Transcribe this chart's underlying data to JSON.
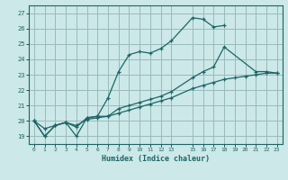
{
  "xlabel": "Humidex (Indice chaleur)",
  "background_color": "#cce8e8",
  "grid_color": "#99bbbb",
  "line_color": "#1a6666",
  "xlim": [
    -0.5,
    23.5
  ],
  "ylim": [
    18.5,
    27.5
  ],
  "xticks": [
    0,
    1,
    2,
    3,
    4,
    5,
    6,
    7,
    8,
    9,
    10,
    11,
    12,
    13,
    15,
    16,
    17,
    18,
    19,
    20,
    21,
    22,
    23
  ],
  "yticks": [
    19,
    20,
    21,
    22,
    23,
    24,
    25,
    26,
    27
  ],
  "line1_x": [
    0,
    1,
    2,
    3,
    4,
    5,
    6,
    7,
    8,
    9,
    10,
    11,
    12,
    13,
    15,
    16,
    17,
    18
  ],
  "line1_y": [
    20.0,
    19.0,
    19.7,
    19.9,
    19.0,
    20.2,
    20.3,
    21.5,
    23.2,
    24.3,
    24.5,
    24.4,
    24.7,
    25.2,
    26.7,
    26.6,
    26.1,
    26.2
  ],
  "line2_x": [
    0,
    1,
    2,
    3,
    4,
    5,
    6,
    7,
    8,
    9,
    10,
    11,
    12,
    13,
    15,
    16,
    17,
    18,
    21,
    22,
    23
  ],
  "line2_y": [
    20.0,
    19.0,
    19.7,
    19.9,
    19.6,
    20.2,
    20.3,
    20.3,
    20.8,
    21.0,
    21.2,
    21.4,
    21.6,
    21.9,
    22.8,
    23.2,
    23.5,
    24.8,
    23.2,
    23.2,
    23.1
  ],
  "line3_x": [
    0,
    1,
    2,
    3,
    4,
    5,
    6,
    7,
    8,
    9,
    10,
    11,
    12,
    13,
    15,
    16,
    17,
    18,
    19,
    20,
    21,
    22,
    23
  ],
  "line3_y": [
    20.0,
    19.5,
    19.7,
    19.9,
    19.7,
    20.1,
    20.2,
    20.3,
    20.5,
    20.7,
    20.9,
    21.1,
    21.3,
    21.5,
    22.1,
    22.3,
    22.5,
    22.7,
    22.8,
    22.9,
    23.0,
    23.1,
    23.1
  ],
  "marker": "+"
}
